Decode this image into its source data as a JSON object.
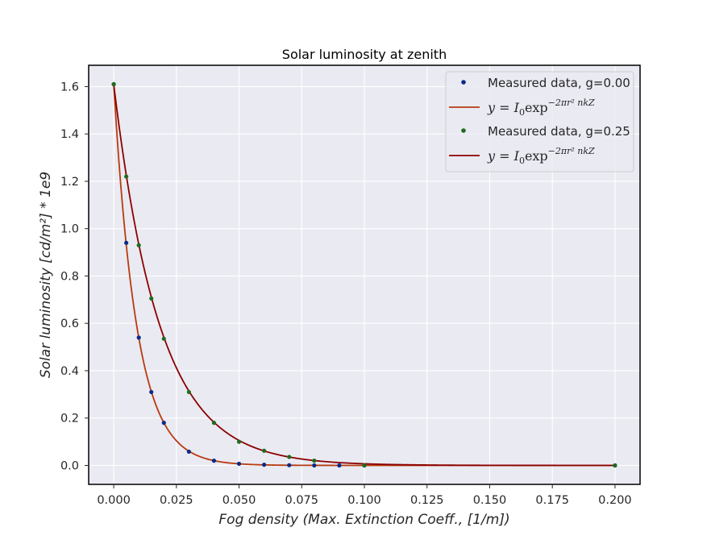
{
  "chart_data": {
    "type": "scatter",
    "title": "Solar luminosity at zenith",
    "xlabel": "Fog density (Max. Extinction Coeff., [1/m])",
    "ylabel": "Solar luminosity [cd/m²] * 1e9",
    "xlim": [
      -0.01,
      0.21
    ],
    "ylim": [
      -0.08,
      1.69
    ],
    "xticks": [
      0.0,
      0.025,
      0.05,
      0.075,
      0.1,
      0.125,
      0.15,
      0.175,
      0.2
    ],
    "xtick_labels": [
      "0.000",
      "0.025",
      "0.050",
      "0.075",
      "0.100",
      "0.125",
      "0.150",
      "0.175",
      "0.200"
    ],
    "yticks": [
      0.0,
      0.2,
      0.4,
      0.6,
      0.8,
      1.0,
      1.2,
      1.4,
      1.6
    ],
    "ytick_labels": [
      "0.0",
      "0.2",
      "0.4",
      "0.6",
      "0.8",
      "1.0",
      "1.2",
      "1.4",
      "1.6"
    ],
    "grid": true,
    "legend_position": "top-right",
    "series": [
      {
        "name": "Measured data, g=0.00",
        "kind": "points",
        "color": "#0b2a8a",
        "x": [
          0.0,
          0.005,
          0.01,
          0.015,
          0.02,
          0.03,
          0.04,
          0.05,
          0.06,
          0.07,
          0.08,
          0.09,
          0.1,
          0.2
        ],
        "y": [
          1.61,
          0.94,
          0.54,
          0.31,
          0.18,
          0.058,
          0.02,
          0.007,
          0.003,
          0.001,
          0.0,
          0.0,
          0.0,
          0.0
        ]
      },
      {
        "name": "y = I0 exp(-2πr² nkZ)",
        "kind": "curve",
        "color": "#b83a0e",
        "I0": 1.61,
        "k": 109.5
      },
      {
        "name": "Measured data, g=0.25",
        "kind": "points",
        "color": "#1f6b1f",
        "x": [
          0.0,
          0.005,
          0.01,
          0.015,
          0.02,
          0.03,
          0.04,
          0.05,
          0.06,
          0.07,
          0.08,
          0.1,
          0.2
        ],
        "y": [
          1.61,
          1.22,
          0.93,
          0.705,
          0.535,
          0.31,
          0.18,
          0.1,
          0.062,
          0.036,
          0.02,
          0.0,
          0.0
        ]
      },
      {
        "name": "y = I0 exp(-2πr² nkZ)",
        "kind": "curve",
        "color": "#8b0000",
        "I0": 1.61,
        "k": 54.5
      }
    ]
  },
  "legend": {
    "entries": [
      {
        "kind": "points",
        "label": "Measured data, g=0.00",
        "color": "#0b2a8a"
      },
      {
        "kind": "curve",
        "label_main": "y = I",
        "label_sub": "0",
        "label_exp": "exp",
        "label_sup": "−2πr² nkZ",
        "color": "#b83a0e"
      },
      {
        "kind": "points",
        "label": "Measured data, g=0.25",
        "color": "#1f6b1f"
      },
      {
        "kind": "curve",
        "label_main": "y = I",
        "label_sub": "0",
        "label_exp": "exp",
        "label_sup": "−2πr² nkZ",
        "color": "#8b0000"
      }
    ]
  },
  "colors": {
    "plot_background": "#eaeaf2",
    "grid": "#ffffff",
    "frame": "#000000"
  }
}
